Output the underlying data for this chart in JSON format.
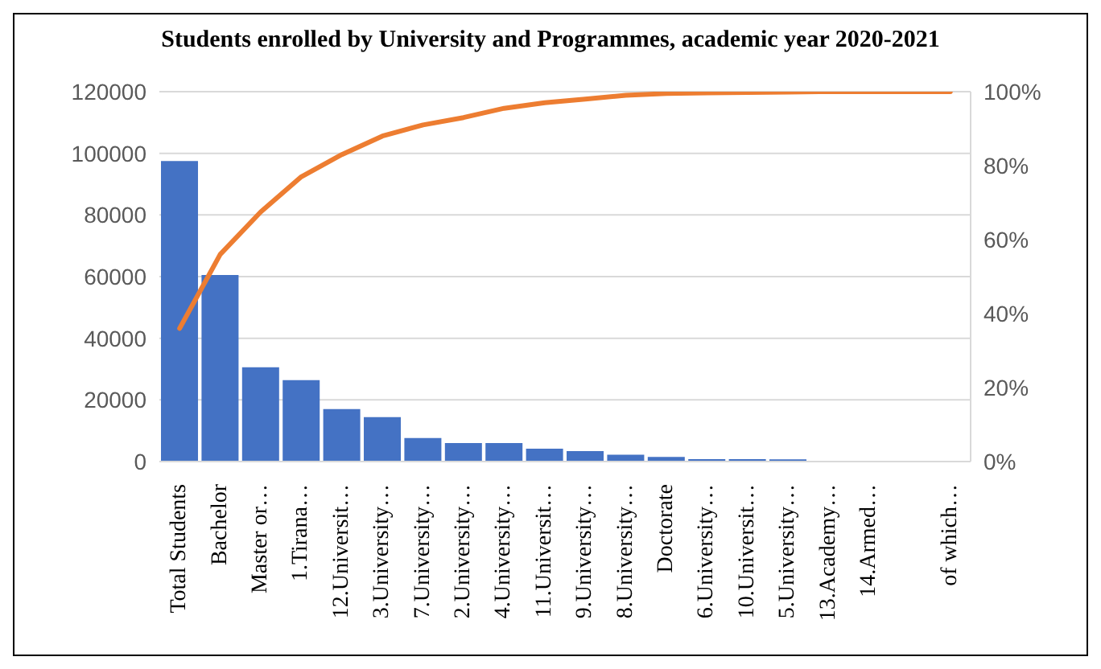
{
  "chart_data": {
    "type": "bar",
    "title": "Students enrolled by University and Programmes, academic year 2020-2021",
    "categories": [
      "Total Students",
      "Bachelor",
      "Master or…",
      "1.Tirana…",
      "12.Universit…",
      "3.University…",
      "7.University…",
      "2.University…",
      "4.University…",
      "11.Universit…",
      "9.University…",
      "8.University…",
      "Doctorate",
      "6.University…",
      "10.Universit…",
      "5.University…",
      "13.Academy…",
      "14.Armed…",
      null,
      "of which…"
    ],
    "series": [
      {
        "color": "#4472c4",
        "values": [
          97500,
          60500,
          30600,
          26400,
          17000,
          14400,
          7600,
          6000,
          6000,
          4200,
          3400,
          2200,
          1500,
          800,
          800,
          700,
          0,
          0,
          0,
          0
        ]
      },
      {
        "type": "line",
        "axis": "y2",
        "color": "#ed7d31",
        "values": [
          36,
          56,
          67.5,
          77,
          83,
          88,
          91,
          93,
          95.5,
          97,
          98,
          99,
          99.5,
          99.7,
          99.8,
          99.9,
          100,
          100,
          100,
          100
        ]
      }
    ],
    "ylim": [
      0,
      120000
    ],
    "yticks": [
      0,
      20000,
      40000,
      60000,
      80000,
      100000,
      120000
    ],
    "y2lim": [
      0,
      100
    ],
    "y2ticks": [
      {
        "value": 0,
        "label": "0%"
      },
      {
        "value": 20,
        "label": "20%"
      },
      {
        "value": 40,
        "label": "40%"
      },
      {
        "value": 60,
        "label": "60%"
      },
      {
        "value": 80,
        "label": "80%"
      },
      {
        "value": 100,
        "label": "100%"
      }
    ],
    "grid": "y",
    "legend": false,
    "marker": "none",
    "line_style": "solid"
  }
}
